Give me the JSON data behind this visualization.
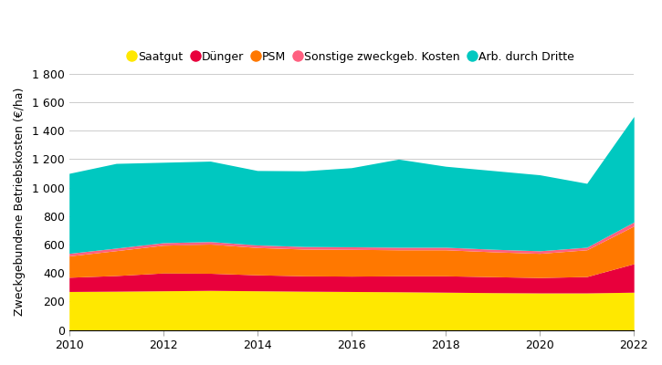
{
  "years": [
    2010,
    2011,
    2012,
    2013,
    2014,
    2015,
    2016,
    2017,
    2018,
    2019,
    2020,
    2021,
    2022
  ],
  "saatgut": [
    270,
    272,
    275,
    278,
    275,
    272,
    270,
    268,
    265,
    262,
    260,
    260,
    265
  ],
  "duenger": [
    100,
    110,
    125,
    120,
    112,
    108,
    108,
    112,
    115,
    112,
    108,
    115,
    200
  ],
  "psm": [
    150,
    175,
    195,
    205,
    192,
    188,
    188,
    183,
    183,
    175,
    170,
    188,
    265
  ],
  "sonstige": [
    18,
    18,
    18,
    18,
    18,
    18,
    18,
    18,
    18,
    18,
    18,
    18,
    28
  ],
  "arb_dritte": [
    562,
    595,
    565,
    565,
    523,
    532,
    556,
    619,
    569,
    553,
    534,
    449,
    742
  ],
  "colors": {
    "saatgut": "#FFE800",
    "duenger": "#E8003C",
    "psm": "#FF7800",
    "sonstige": "#FF6080",
    "arb_dritte": "#00C8C0"
  },
  "labels": [
    "Saatgut",
    "Dünger",
    "PSM",
    "Sonstige zweckgeb. Kosten",
    "Arb. durch Dritte"
  ],
  "ylabel": "Zweckgebundene Betriebskosten (€/ha)",
  "ylim": [
    0,
    1800
  ],
  "yticks": [
    0,
    200,
    400,
    600,
    800,
    1000,
    1200,
    1400,
    1600,
    1800
  ],
  "ytick_labels": [
    "0",
    "200",
    "400",
    "600",
    "800",
    "1 000",
    "1 200",
    "1 400",
    "1 600",
    "1 800"
  ],
  "xticks": [
    2010,
    2012,
    2014,
    2016,
    2018,
    2020,
    2022
  ],
  "background_color": "#ffffff",
  "grid_color": "#cccccc",
  "legend_marker_size": 10
}
